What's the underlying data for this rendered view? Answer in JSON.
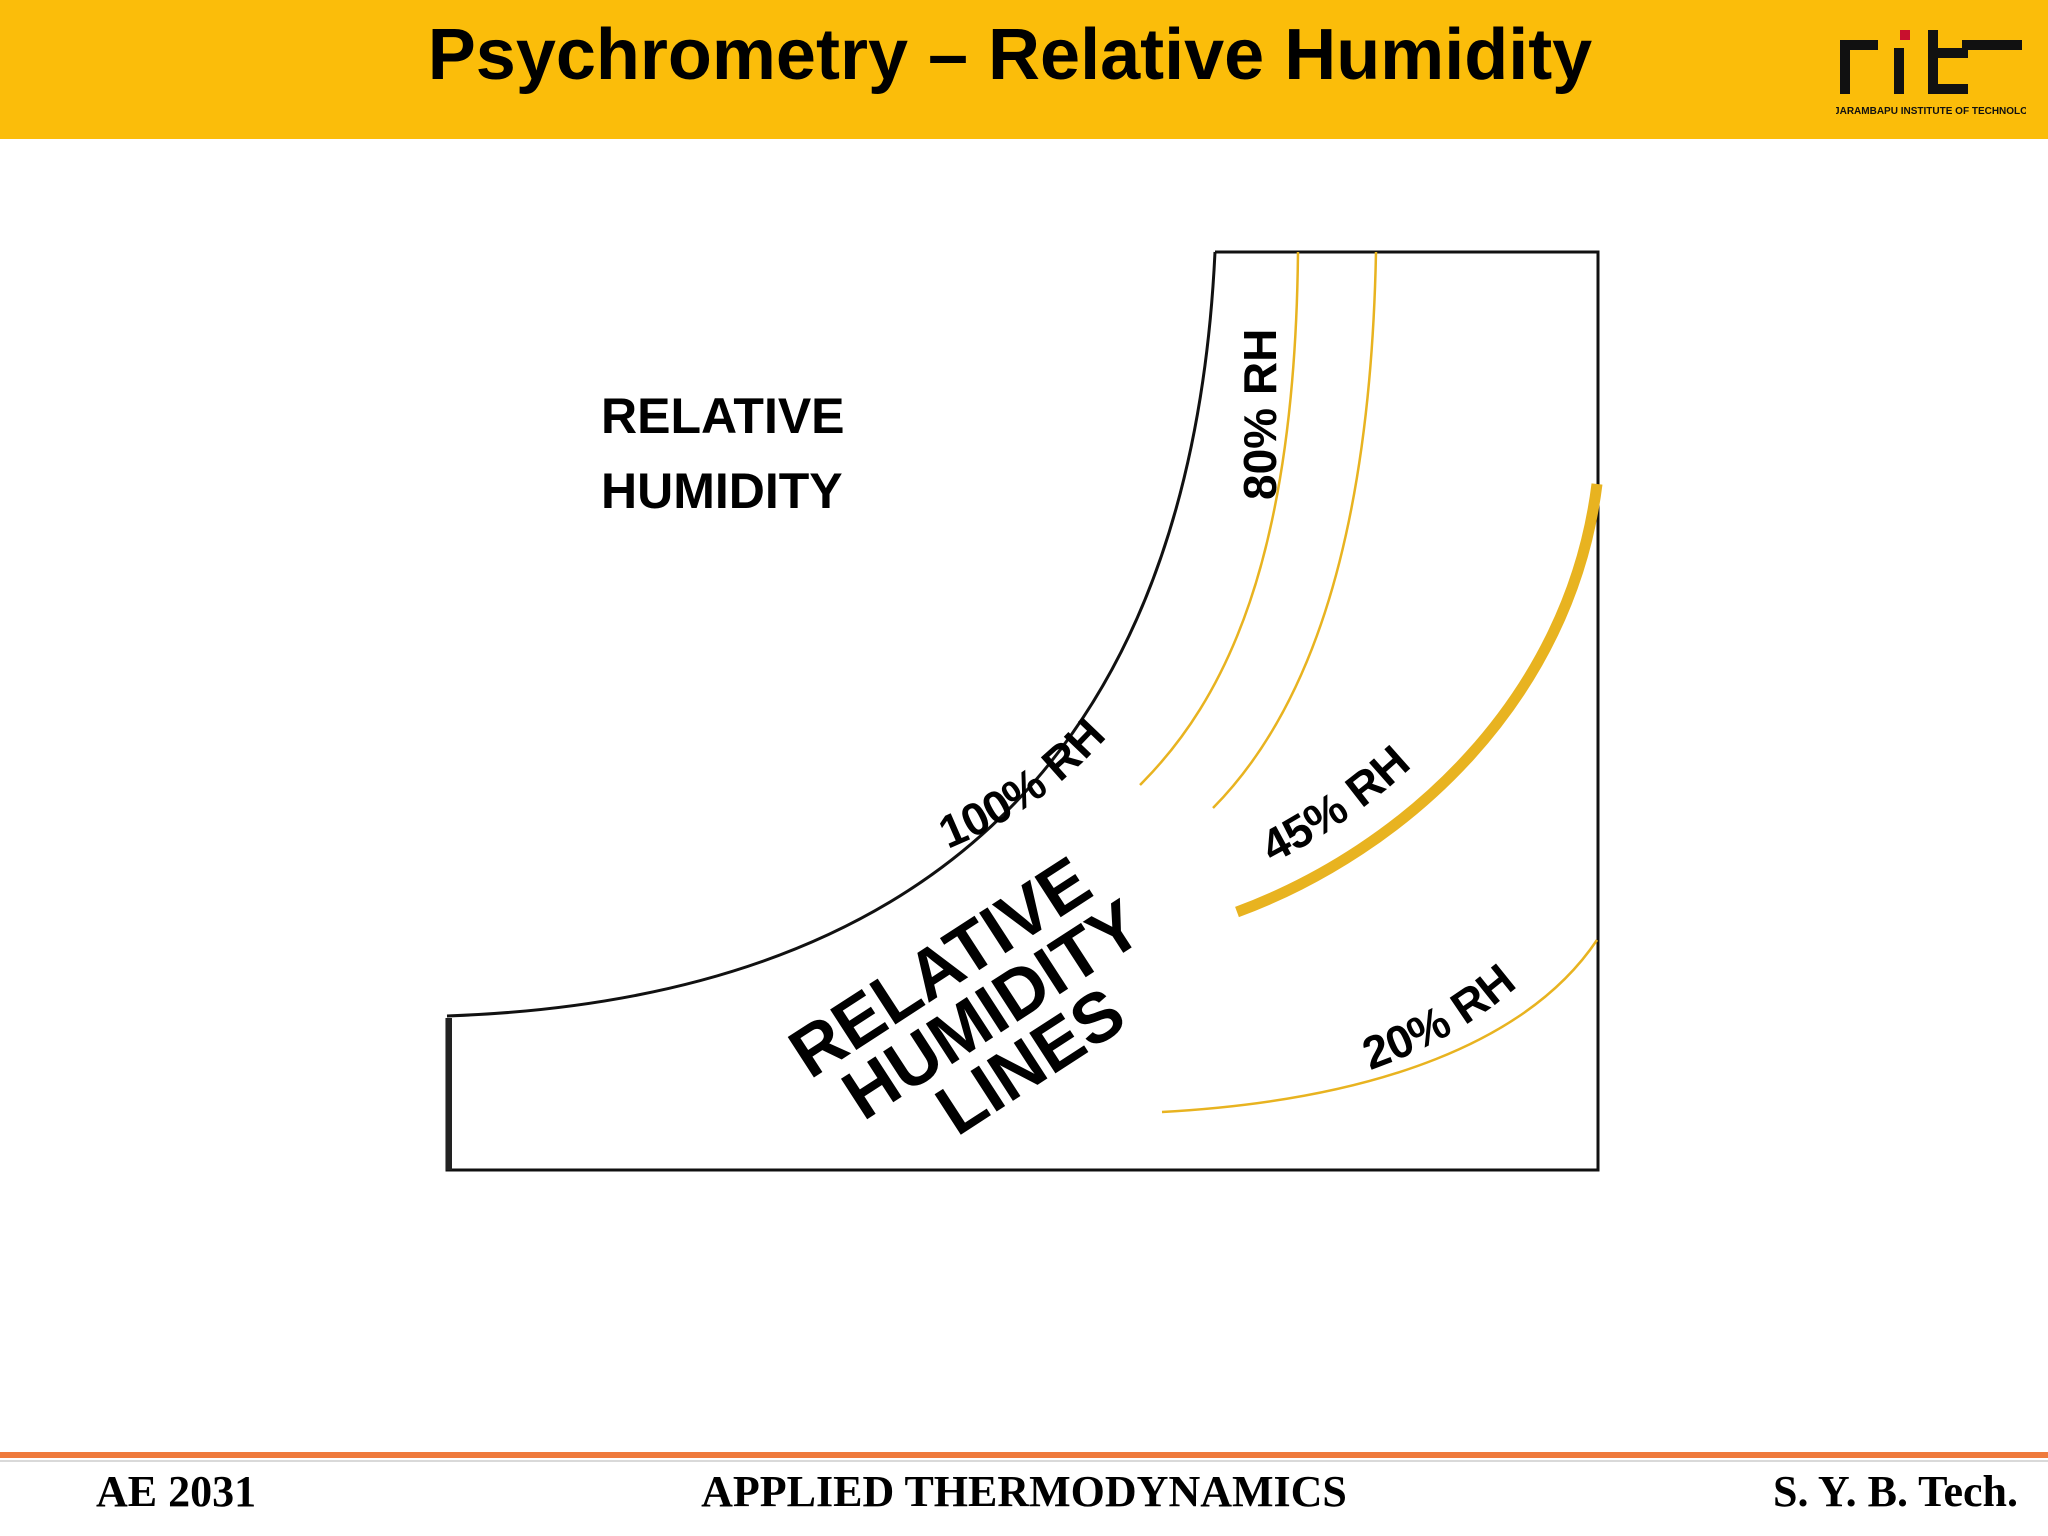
{
  "header": {
    "title": "Psychrometry – Relative Humidity",
    "background": "#fbbd0a"
  },
  "logo": {
    "mark": "rit",
    "caption": "RAJARAMBAPU INSTITUTE OF TECHNOLOGY"
  },
  "diagram": {
    "heading_line1": "RELATIVE",
    "heading_line2": "HUMIDITY",
    "center_label_line1": "RELATIVE",
    "center_label_line2": "HUMIDITY",
    "center_label_line3": "LINES",
    "curves": [
      {
        "label": "100% RH",
        "color": "#000000"
      },
      {
        "label": "80% RH",
        "color": "#e8b320"
      },
      {
        "label": "",
        "color": "#e8b320"
      },
      {
        "label": "45% RH",
        "color": "#e8b320"
      },
      {
        "label": "20% RH",
        "color": "#e8b320"
      }
    ]
  },
  "footer": {
    "left": "AE 2031",
    "center": "APPLIED THERMODYNAMICS",
    "right": "S. Y. B. Tech.",
    "rule_color": "#ef7a3c"
  }
}
